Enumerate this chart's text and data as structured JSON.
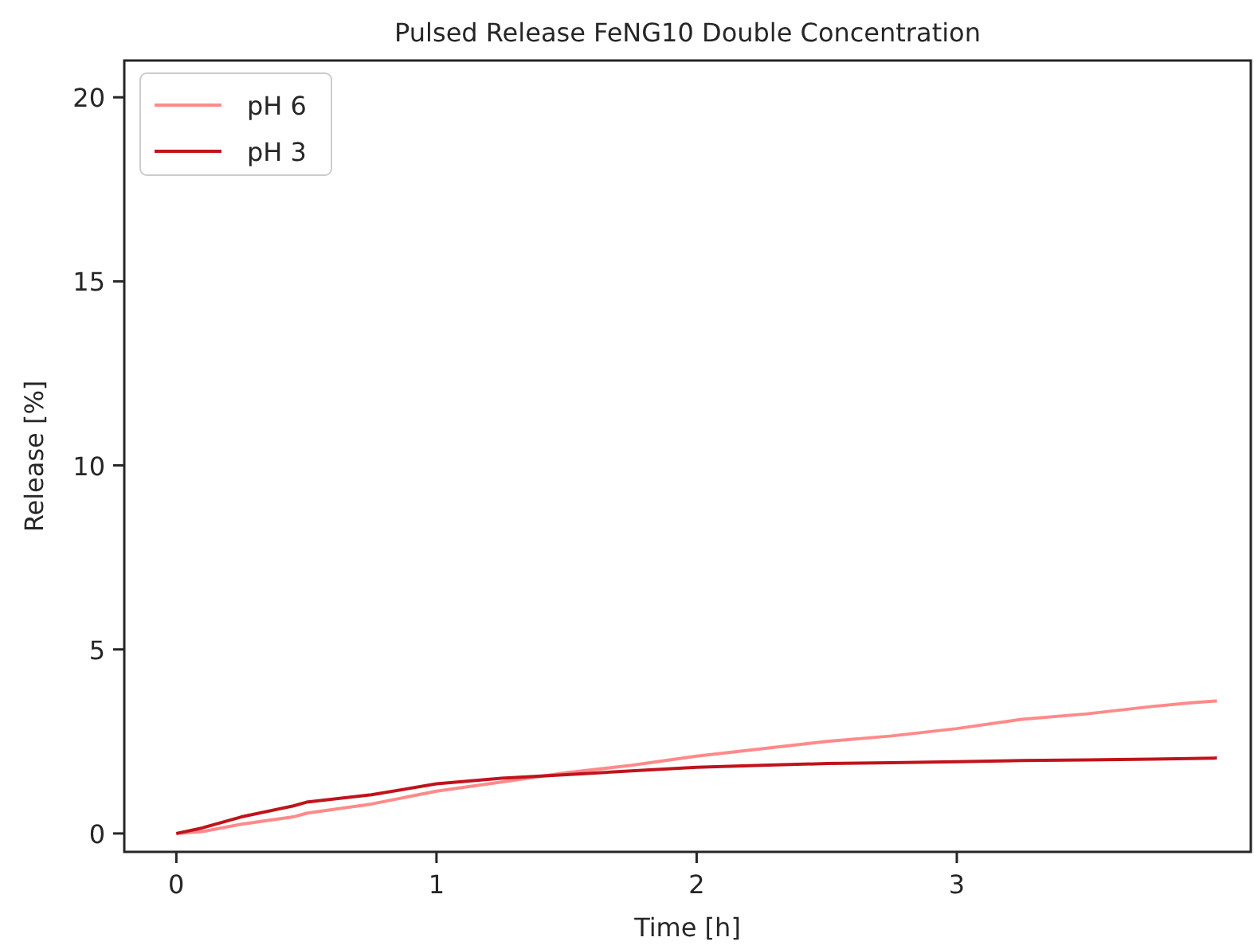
{
  "chart_data": {
    "type": "line",
    "title": "Pulsed Release FeNG10 Double Concentration",
    "xlabel": "Time [h]",
    "ylabel": "Release [%]",
    "xlim": [
      -0.2,
      4.13
    ],
    "xticks": [
      0,
      1,
      2,
      3
    ],
    "ylim": [
      -0.5,
      21
    ],
    "yticks": [
      0,
      5,
      10,
      15,
      20
    ],
    "grid": false,
    "legend": "top left",
    "series": [
      {
        "name": "pH 6",
        "color": "#ff8a8a",
        "x": [
          0,
          0.1,
          0.25,
          0.45,
          0.5,
          0.75,
          1,
          1.25,
          1.5,
          1.75,
          2,
          2.25,
          2.5,
          2.75,
          3,
          3.25,
          3.5,
          3.75,
          3.9,
          4
        ],
        "values": [
          0,
          0.05,
          0.25,
          0.45,
          0.55,
          0.8,
          1.15,
          1.4,
          1.65,
          1.85,
          2.1,
          2.3,
          2.5,
          2.65,
          2.85,
          3.1,
          3.25,
          3.45,
          3.55,
          3.6
        ]
      },
      {
        "name": "pH 3",
        "color": "#c0131b",
        "x": [
          0,
          0.1,
          0.25,
          0.45,
          0.5,
          0.75,
          1,
          1.25,
          1.5,
          1.75,
          2,
          2.25,
          2.5,
          2.75,
          3,
          3.25,
          3.5,
          3.75,
          4
        ],
        "values": [
          0,
          0.15,
          0.45,
          0.75,
          0.85,
          1.05,
          1.35,
          1.5,
          1.6,
          1.7,
          1.8,
          1.85,
          1.9,
          1.92,
          1.95,
          1.98,
          2.0,
          2.02,
          2.05
        ]
      }
    ]
  }
}
